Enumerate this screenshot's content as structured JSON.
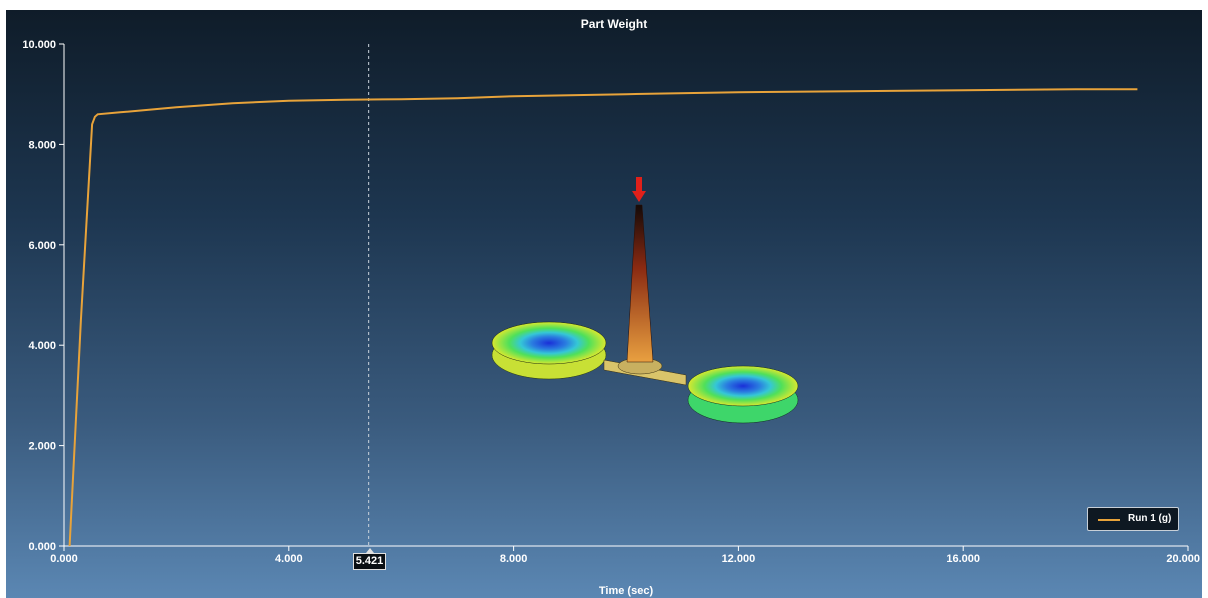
{
  "chart_data": {
    "type": "line",
    "title": "Part Weight",
    "xlabel": "Time (sec)",
    "ylabel": "",
    "xlim": [
      0,
      20
    ],
    "ylim": [
      0,
      10
    ],
    "x_ticks": [
      {
        "value": 0,
        "label": "0.000"
      },
      {
        "value": 4,
        "label": "4.000"
      },
      {
        "value": 8,
        "label": "8.000"
      },
      {
        "value": 12,
        "label": "12.000"
      },
      {
        "value": 16,
        "label": "16.000"
      },
      {
        "value": 20,
        "label": "20.000"
      }
    ],
    "y_ticks": [
      {
        "value": 0,
        "label": "0.000"
      },
      {
        "value": 2,
        "label": "2.000"
      },
      {
        "value": 4,
        "label": "4.000"
      },
      {
        "value": 6,
        "label": "6.000"
      },
      {
        "value": 8,
        "label": "8.000"
      },
      {
        "value": 10,
        "label": "10.000"
      }
    ],
    "series": [
      {
        "name": "Run 1 (g)",
        "color": "#e8a33a",
        "x": [
          0.1,
          0.3,
          0.5,
          0.55,
          0.6,
          1.0,
          2.0,
          3.0,
          4.0,
          5.0,
          6.0,
          7.0,
          8.0,
          10.0,
          12.0,
          14.0,
          16.0,
          18.0,
          19.1
        ],
        "y": [
          0.0,
          4.5,
          8.4,
          8.55,
          8.6,
          8.64,
          8.74,
          8.82,
          8.87,
          8.89,
          8.9,
          8.92,
          8.96,
          9.0,
          9.04,
          9.06,
          9.08,
          9.1,
          9.1
        ]
      }
    ],
    "cursor": {
      "x": 5.421,
      "label": "5.421"
    },
    "legend": {
      "position": "bottom-right"
    },
    "grid": false
  }
}
